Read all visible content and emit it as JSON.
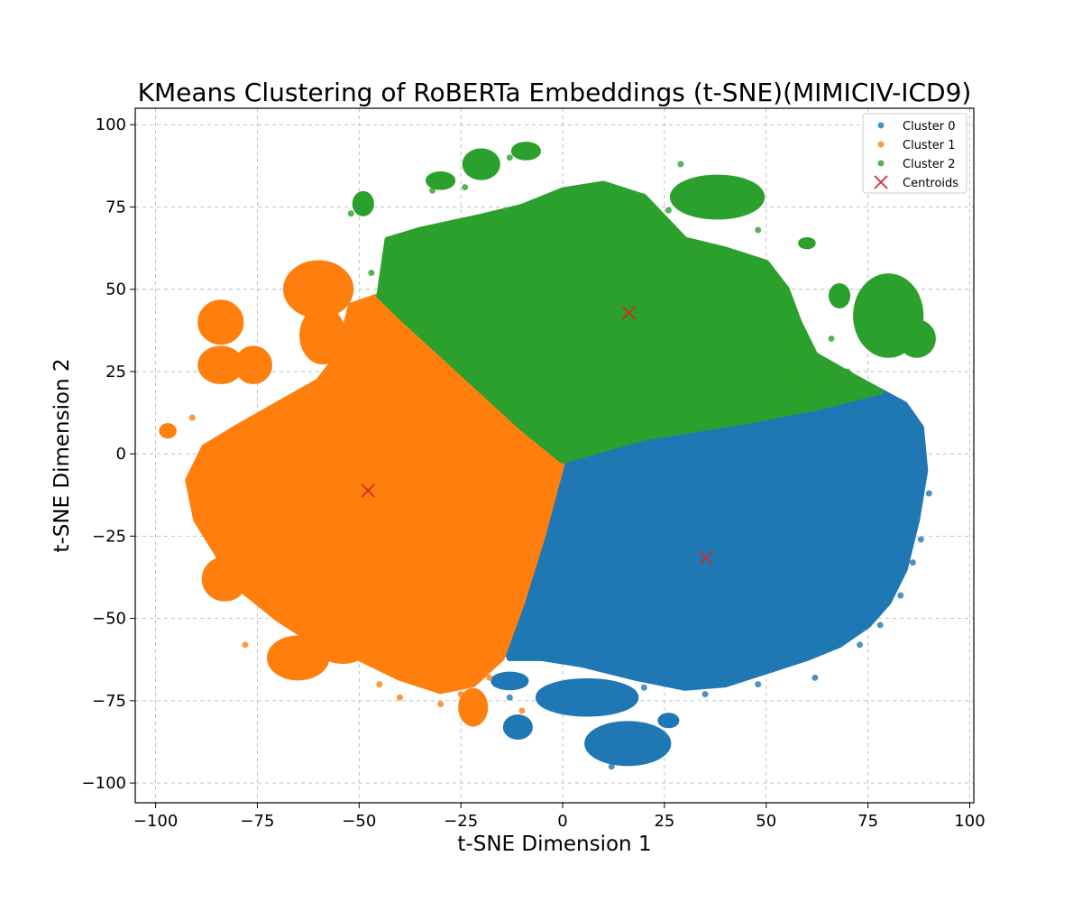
{
  "chart_data": {
    "type": "scatter",
    "title": "KMeans Clustering of RoBERTa Embeddings (t-SNE)(MIMICIV-ICD9)",
    "xlabel": "t-SNE Dimension 1",
    "ylabel": "t-SNE Dimension 2",
    "xlim": [
      -105,
      101
    ],
    "ylim": [
      -106,
      105
    ],
    "xticks": [
      -100,
      -75,
      -50,
      -25,
      0,
      25,
      50,
      75,
      100
    ],
    "xtick_labels": [
      "−100",
      "−75",
      "−50",
      "−25",
      "0",
      "25",
      "50",
      "75",
      "100"
    ],
    "yticks": [
      -100,
      -75,
      -50,
      -25,
      0,
      25,
      50,
      75,
      100
    ],
    "ytick_labels": [
      "−100",
      "−75",
      "−50",
      "−25",
      "0",
      "25",
      "50",
      "75",
      "100"
    ],
    "grid": true,
    "legend_position": "top-right",
    "series": [
      {
        "name": "Cluster 0",
        "color": "#1f77b4",
        "regions": [
          {
            "kind": "polygon",
            "points": [
              [
                0,
                -2
              ],
              [
                20,
                5
              ],
              [
                45,
                10
              ],
              [
                62,
                14
              ],
              [
                78,
                19
              ],
              [
                84,
                15
              ],
              [
                88,
                8
              ],
              [
                89,
                -5
              ],
              [
                87,
                -20
              ],
              [
                84,
                -35
              ],
              [
                80,
                -45
              ],
              [
                75,
                -52
              ],
              [
                68,
                -58
              ],
              [
                60,
                -62
              ],
              [
                50,
                -66
              ],
              [
                40,
                -70
              ],
              [
                30,
                -71
              ],
              [
                18,
                -68
              ],
              [
                5,
                -64
              ],
              [
                -5,
                -62
              ],
              [
                -13,
                -62
              ],
              [
                -15,
                -55
              ],
              [
                -10,
                -40
              ],
              [
                -5,
                -20
              ]
            ]
          },
          {
            "kind": "ellipse",
            "cx": 6,
            "cy": -74,
            "rx": 12,
            "ry": 5
          },
          {
            "kind": "ellipse",
            "cx": 16,
            "cy": -88,
            "rx": 10,
            "ry": 6
          },
          {
            "kind": "ellipse",
            "cx": -11,
            "cy": -83,
            "rx": 3,
            "ry": 3
          },
          {
            "kind": "ellipse",
            "cx": -13,
            "cy": -69,
            "rx": 4,
            "ry": 2
          },
          {
            "kind": "ellipse",
            "cx": 26,
            "cy": -81,
            "rx": 2,
            "ry": 1.5
          }
        ],
        "points": [
          [
            90,
            -12
          ],
          [
            88,
            -26
          ],
          [
            86,
            -33
          ],
          [
            83,
            -43
          ],
          [
            78,
            -52
          ],
          [
            73,
            -58
          ],
          [
            62,
            -68
          ],
          [
            48,
            -70
          ],
          [
            35,
            -73
          ],
          [
            20,
            -71
          ],
          [
            85,
            -5
          ],
          [
            12,
            -95
          ],
          [
            -13,
            -74
          ]
        ]
      },
      {
        "name": "Cluster 1",
        "color": "#ff7f0e",
        "regions": [
          {
            "kind": "polygon",
            "points": [
              [
                0,
                -2
              ],
              [
                -10,
                8
              ],
              [
                -25,
                25
              ],
              [
                -40,
                42
              ],
              [
                -45,
                48
              ],
              [
                -52,
                45
              ],
              [
                -55,
                30
              ],
              [
                -60,
                22
              ],
              [
                -70,
                15
              ],
              [
                -80,
                8
              ],
              [
                -88,
                2
              ],
              [
                -92,
                -8
              ],
              [
                -90,
                -20
              ],
              [
                -85,
                -30
              ],
              [
                -80,
                -40
              ],
              [
                -70,
                -50
              ],
              [
                -60,
                -58
              ],
              [
                -50,
                -62
              ],
              [
                -40,
                -68
              ],
              [
                -30,
                -72
              ],
              [
                -22,
                -70
              ],
              [
                -15,
                -62
              ],
              [
                -10,
                -45
              ],
              [
                -5,
                -25
              ]
            ]
          },
          {
            "kind": "ellipse",
            "cx": -60,
            "cy": 50,
            "rx": 8,
            "ry": 8
          },
          {
            "kind": "ellipse",
            "cx": -59,
            "cy": 36,
            "rx": 5,
            "ry": 8
          },
          {
            "kind": "ellipse",
            "cx": -84,
            "cy": 40,
            "rx": 5,
            "ry": 6
          },
          {
            "kind": "ellipse",
            "cx": -84,
            "cy": 27,
            "rx": 5,
            "ry": 5
          },
          {
            "kind": "ellipse",
            "cx": -76,
            "cy": 27,
            "rx": 4,
            "ry": 5
          },
          {
            "kind": "ellipse",
            "cx": -83,
            "cy": -38,
            "rx": 5,
            "ry": 6
          },
          {
            "kind": "ellipse",
            "cx": -65,
            "cy": -62,
            "rx": 7,
            "ry": 6
          },
          {
            "kind": "ellipse",
            "cx": -54,
            "cy": -58,
            "rx": 6,
            "ry": 5
          },
          {
            "kind": "ellipse",
            "cx": -97,
            "cy": 7,
            "rx": 1.5,
            "ry": 1.5
          },
          {
            "kind": "ellipse",
            "cx": -22,
            "cy": -77,
            "rx": 3,
            "ry": 5
          }
        ],
        "points": [
          [
            -98,
            6
          ],
          [
            -91,
            11
          ],
          [
            -78,
            -58
          ],
          [
            -45,
            -70
          ],
          [
            -40,
            -74
          ],
          [
            -30,
            -76
          ],
          [
            -22,
            -82
          ],
          [
            -10,
            -78
          ],
          [
            -18,
            -68
          ],
          [
            -25,
            -73
          ],
          [
            -50,
            35
          ],
          [
            -45,
            30
          ],
          [
            -42,
            25
          ],
          [
            -35,
            15
          ],
          [
            -90,
            -17
          ]
        ]
      },
      {
        "name": "Cluster 2",
        "color": "#2ca02c",
        "regions": [
          {
            "kind": "polygon",
            "points": [
              [
                0,
                -2
              ],
              [
                20,
                5
              ],
              [
                45,
                10
              ],
              [
                62,
                14
              ],
              [
                78,
                19
              ],
              [
                72,
                23
              ],
              [
                62,
                30
              ],
              [
                58,
                40
              ],
              [
                55,
                50
              ],
              [
                50,
                58
              ],
              [
                40,
                62
              ],
              [
                30,
                65
              ],
              [
                20,
                78
              ],
              [
                10,
                82
              ],
              [
                0,
                80
              ],
              [
                -10,
                75
              ],
              [
                -20,
                72
              ],
              [
                -35,
                68
              ],
              [
                -43,
                65
              ],
              [
                -45,
                48
              ],
              [
                -40,
                42
              ],
              [
                -25,
                25
              ],
              [
                -10,
                8
              ]
            ]
          },
          {
            "kind": "ellipse",
            "cx": 38,
            "cy": 78,
            "rx": 11,
            "ry": 6
          },
          {
            "kind": "ellipse",
            "cx": 80,
            "cy": 42,
            "rx": 8,
            "ry": 12
          },
          {
            "kind": "ellipse",
            "cx": 87,
            "cy": 35,
            "rx": 4,
            "ry": 5
          },
          {
            "kind": "ellipse",
            "cx": -20,
            "cy": 88,
            "rx": 4,
            "ry": 4
          },
          {
            "kind": "ellipse",
            "cx": -9,
            "cy": 92,
            "rx": 3,
            "ry": 2
          },
          {
            "kind": "ellipse",
            "cx": -49,
            "cy": 76,
            "rx": 2,
            "ry": 3
          },
          {
            "kind": "ellipse",
            "cx": -30,
            "cy": 83,
            "rx": 3,
            "ry": 2
          },
          {
            "kind": "ellipse",
            "cx": 60,
            "cy": 64,
            "rx": 1.5,
            "ry": 1
          },
          {
            "kind": "ellipse",
            "cx": 68,
            "cy": 48,
            "rx": 2,
            "ry": 3
          }
        ],
        "points": [
          [
            -52,
            73
          ],
          [
            29,
            88
          ],
          [
            65,
            22
          ],
          [
            60,
            18
          ],
          [
            70,
            25
          ],
          [
            55,
            25
          ],
          [
            52,
            15
          ],
          [
            58,
            32
          ],
          [
            66,
            35
          ],
          [
            -13,
            90
          ],
          [
            -24,
            81
          ],
          [
            -32,
            80
          ],
          [
            -47,
            55
          ],
          [
            48,
            68
          ],
          [
            26,
            74
          ]
        ]
      }
    ],
    "centroids": {
      "name": "Centroids",
      "color": "#d62728",
      "marker": "x",
      "points": [
        [
          16.3,
          42.8
        ],
        [
          -47.8,
          -11.2
        ],
        [
          35.2,
          -31.6
        ]
      ]
    }
  }
}
